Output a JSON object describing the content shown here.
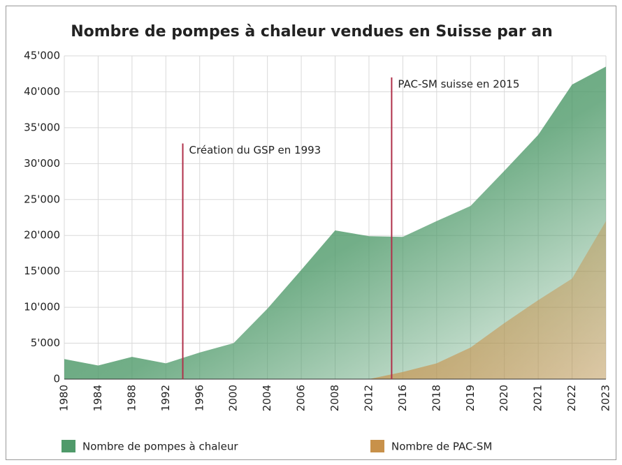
{
  "chart_data": {
    "type": "area",
    "title": "Nombre de pompes à chaleur vendues en Suisse par an",
    "categories": [
      "1980",
      "1984",
      "1988",
      "1992",
      "1996",
      "2000",
      "2004",
      "2006",
      "2008",
      "2012",
      "2016",
      "2018",
      "2019",
      "2020",
      "2021",
      "2022",
      "2023"
    ],
    "series": [
      {
        "name": "Nombre de pompes à chaleur",
        "color": "#4f9a6a",
        "values": [
          2800,
          1900,
          3100,
          2200,
          3700,
          5000,
          9800,
          15200,
          20700,
          19900,
          19800,
          22000,
          24100,
          29000,
          34000,
          41000,
          43500
        ]
      },
      {
        "name": "Nombre de PAC-SM",
        "color": "#c8914a",
        "values": [
          0,
          0,
          0,
          0,
          0,
          0,
          0,
          0,
          0,
          0,
          1000,
          2200,
          4400,
          7800,
          11000,
          14000,
          22000
        ]
      }
    ],
    "annotations": [
      "Création du GSP en 1993",
      "PAC-SM suisse en 2015"
    ],
    "ylim": [
      0,
      45000
    ],
    "yticks": [
      0,
      {
        "value": 5000,
        "label": "5'000"
      },
      {
        "value": 10000,
        "label": "10'000"
      },
      {
        "value": 15000,
        "label": "15'000"
      },
      {
        "value": 20000,
        "label": "20'000"
      },
      {
        "value": 25000,
        "label": "25'000"
      },
      {
        "value": 30000,
        "label": "30'000"
      },
      {
        "value": 35000,
        "label": "35'000"
      },
      {
        "value": 40000,
        "label": "40'000"
      },
      {
        "value": 45000,
        "label": "45'000"
      }
    ],
    "grid": true
  }
}
